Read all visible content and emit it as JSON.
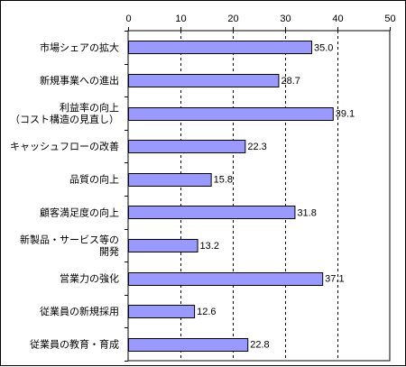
{
  "chart_data": {
    "type": "bar",
    "orientation": "horizontal",
    "categories": [
      [
        "市場シェアの拡大"
      ],
      [
        "新規事業への進出"
      ],
      [
        "利益率の向上",
        "（コスト構造の見直し）"
      ],
      [
        "キャッシュフローの改善"
      ],
      [
        "品質の向上"
      ],
      [
        "顧客満足度の向上"
      ],
      [
        "新製品・サービス等の",
        "開発"
      ],
      [
        "営業力の強化"
      ],
      [
        "従業員の新規採用"
      ],
      [
        "従業員の教育・育成"
      ]
    ],
    "values": [
      35.0,
      28.7,
      39.1,
      22.3,
      15.8,
      31.8,
      13.2,
      37.1,
      12.6,
      22.8
    ],
    "value_labels": [
      "35.0",
      "28.7",
      "39.1",
      "22.3",
      "15.8",
      "31.8",
      "13.2",
      "37.1",
      "12.6",
      "22.8"
    ],
    "xlim": [
      0,
      50
    ],
    "xticks": [
      0,
      10,
      20,
      30,
      40,
      50
    ],
    "x_tick_labels": [
      "0",
      "10",
      "20",
      "30",
      "40",
      "50"
    ],
    "axis_position": "top",
    "grid": "vertical-dashed",
    "colors": {
      "bar_fill": "#9999ff",
      "bar_stroke": "#000000",
      "grid": "#000000",
      "axis": "#000000"
    }
  }
}
